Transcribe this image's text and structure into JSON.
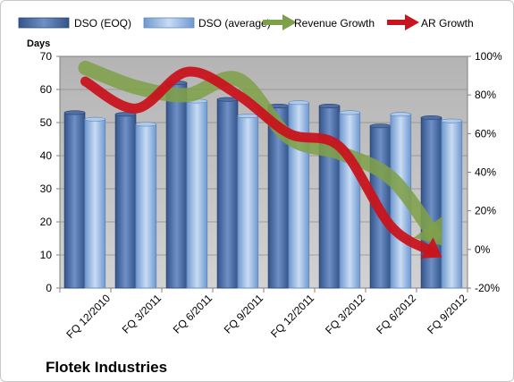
{
  "chart_data": {
    "type": "bar",
    "title": "",
    "company": "Flotek Industries",
    "ylabel": "Days",
    "y2label": "",
    "ylim": [
      0,
      70
    ],
    "yticks": [
      0,
      10,
      20,
      30,
      40,
      50,
      60,
      70
    ],
    "y2lim": [
      -20,
      100
    ],
    "y2ticks": [
      "-20%",
      "0%",
      "20%",
      "40%",
      "60%",
      "80%",
      "100%"
    ],
    "categories": [
      "FQ 12/2010",
      "FQ 3/2011",
      "FQ 6/2011",
      "FQ 9/2011",
      "FQ 12/2011",
      "FQ 3/2012",
      "FQ 6/2012",
      "FQ 9/2012"
    ],
    "series": [
      {
        "name": "DSO (EOQ)",
        "type": "bar",
        "axis": "left",
        "color": "#4a6aa0",
        "values": [
          53,
          52.5,
          62,
          57,
          55,
          55,
          49,
          51.5
        ]
      },
      {
        "name": "DSO (average)",
        "type": "bar",
        "axis": "left",
        "color": "#8fb4e3",
        "values": [
          51,
          49.5,
          56.5,
          52,
          56,
          53,
          52.5,
          50.5
        ]
      },
      {
        "name": "Revenue Growth",
        "type": "line",
        "axis": "right",
        "color": "#7fa04a",
        "values": [
          94,
          84,
          80,
          88,
          58,
          50,
          37,
          2
        ]
      },
      {
        "name": "AR Growth",
        "type": "line",
        "axis": "right",
        "color": "#c8141e",
        "values": [
          87,
          73,
          92,
          80,
          60,
          53,
          12,
          -4
        ]
      }
    ],
    "legend_position": "top",
    "grid": true,
    "plot_background": "#c0c0c0"
  }
}
